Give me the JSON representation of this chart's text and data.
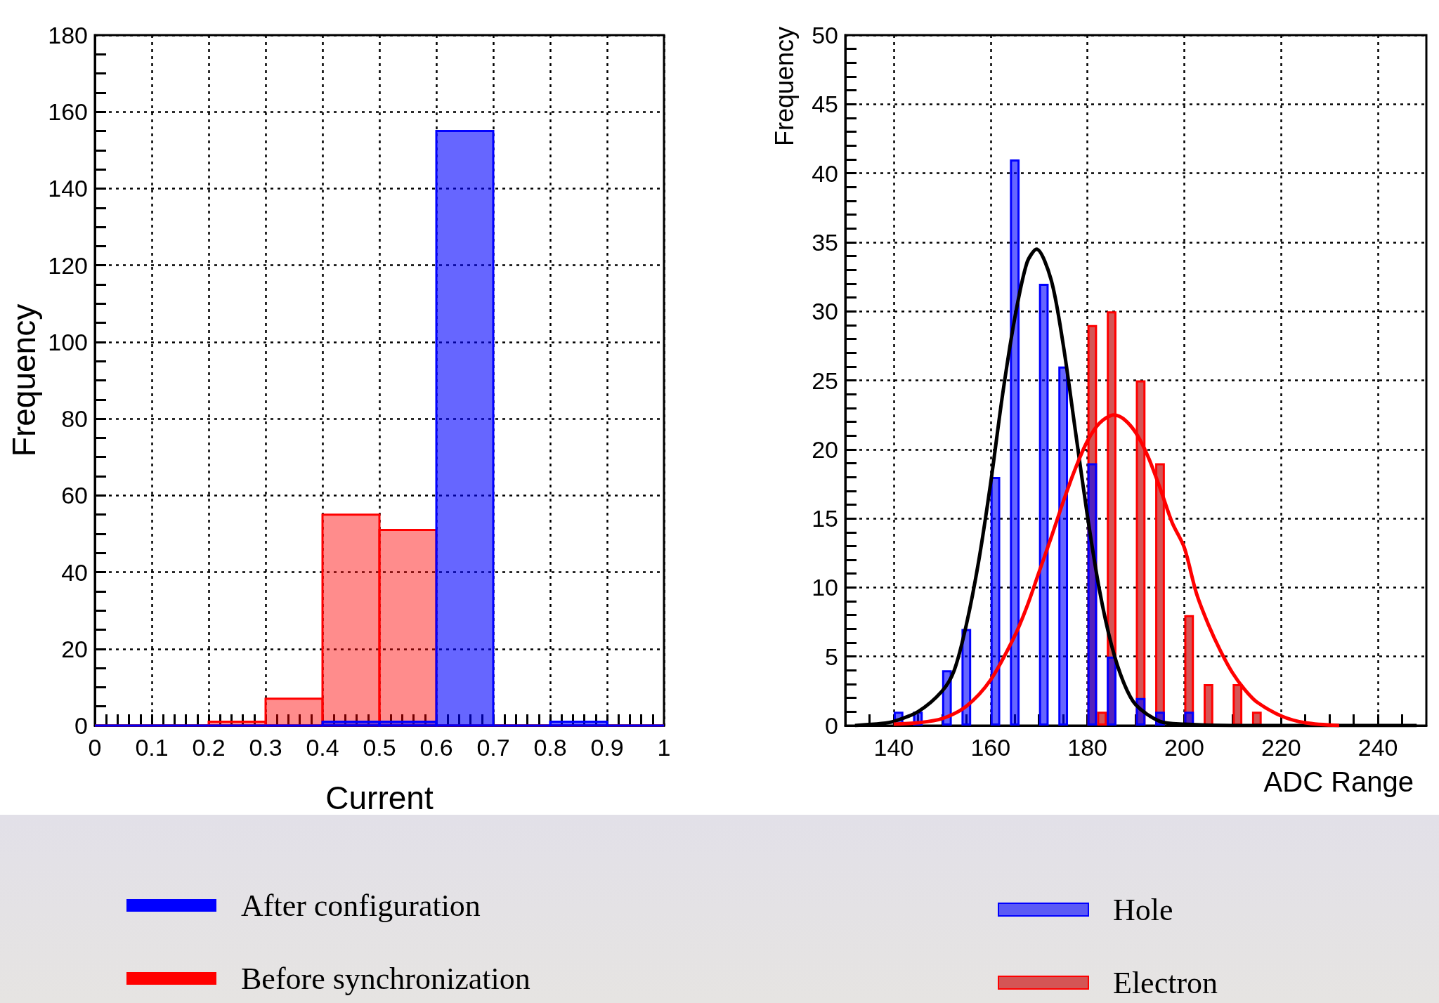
{
  "chart_data": [
    {
      "type": "histogram",
      "xlabel": "Current",
      "ylabel": "Frequency",
      "bins": [
        0,
        0.1,
        0.2,
        0.3,
        0.4,
        0.5,
        0.6,
        0.7,
        0.8,
        0.9,
        1
      ],
      "series": [
        {
          "name": "After configuration",
          "color": "#0000ff",
          "values": [
            0,
            0,
            0,
            0,
            1,
            1,
            155,
            0,
            1,
            0
          ]
        },
        {
          "name": "Before synchronization",
          "color": "#ff0000",
          "values": [
            0,
            0,
            1,
            7,
            55,
            51,
            0,
            0,
            0,
            0
          ]
        }
      ],
      "xlim": [
        0,
        1
      ],
      "xticks": [
        0,
        {
          "value": 0.02,
          "label": null
        },
        {
          "value": 0.04,
          "label": null
        },
        {
          "value": 0.06,
          "label": null
        },
        {
          "value": 0.08,
          "label": null
        },
        0.1,
        {
          "value": 0.12,
          "label": null
        },
        {
          "value": 0.14,
          "label": null
        },
        {
          "value": 0.16,
          "label": null
        },
        {
          "value": 0.18,
          "label": null
        },
        0.2,
        {
          "value": 0.22,
          "label": null
        },
        {
          "value": 0.24,
          "label": null
        },
        {
          "value": 0.26,
          "label": null
        },
        {
          "value": 0.28,
          "label": null
        },
        0.3,
        {
          "value": 0.32,
          "label": null
        },
        {
          "value": 0.34,
          "label": null
        },
        {
          "value": 0.36,
          "label": null
        },
        {
          "value": 0.38,
          "label": null
        },
        0.4,
        {
          "value": 0.42,
          "label": null
        },
        {
          "value": 0.44,
          "label": null
        },
        {
          "value": 0.46,
          "label": null
        },
        {
          "value": 0.48,
          "label": null
        },
        0.5,
        {
          "value": 0.52,
          "label": null
        },
        {
          "value": 0.54,
          "label": null
        },
        {
          "value": 0.56,
          "label": null
        },
        {
          "value": 0.58,
          "label": null
        },
        0.6,
        {
          "value": 0.62,
          "label": null
        },
        {
          "value": 0.64,
          "label": null
        },
        {
          "value": 0.66,
          "label": null
        },
        {
          "value": 0.68,
          "label": null
        },
        0.7,
        {
          "value": 0.72,
          "label": null
        },
        {
          "value": 0.74,
          "label": null
        },
        {
          "value": 0.76,
          "label": null
        },
        {
          "value": 0.78,
          "label": null
        },
        0.8,
        {
          "value": 0.82,
          "label": null
        },
        {
          "value": 0.84,
          "label": null
        },
        {
          "value": 0.86,
          "label": null
        },
        {
          "value": 0.88,
          "label": null
        },
        0.9,
        {
          "value": 0.92,
          "label": null
        },
        {
          "value": 0.94,
          "label": null
        },
        {
          "value": 0.96,
          "label": null
        },
        {
          "value": 0.98,
          "label": null
        },
        1
      ],
      "ylim": [
        0,
        180
      ],
      "yticks": [
        0,
        {
          "value": 5,
          "label": null
        },
        {
          "value": 10,
          "label": null
        },
        {
          "value": 15,
          "label": null
        },
        20,
        {
          "value": 25,
          "label": null
        },
        {
          "value": 30,
          "label": null
        },
        {
          "value": 35,
          "label": null
        },
        40,
        {
          "value": 45,
          "label": null
        },
        {
          "value": 50,
          "label": null
        },
        {
          "value": 55,
          "label": null
        },
        60,
        {
          "value": 65,
          "label": null
        },
        {
          "value": 70,
          "label": null
        },
        {
          "value": 75,
          "label": null
        },
        80,
        {
          "value": 85,
          "label": null
        },
        {
          "value": 90,
          "label": null
        },
        {
          "value": 95,
          "label": null
        },
        100,
        {
          "value": 105,
          "label": null
        },
        {
          "value": 110,
          "label": null
        },
        {
          "value": 115,
          "label": null
        },
        120,
        {
          "value": 125,
          "label": null
        },
        {
          "value": 130,
          "label": null
        },
        {
          "value": 135,
          "label": null
        },
        140,
        {
          "value": 145,
          "label": null
        },
        {
          "value": 150,
          "label": null
        },
        {
          "value": 155,
          "label": null
        },
        160,
        {
          "value": 165,
          "label": null
        },
        {
          "value": 170,
          "label": null
        },
        {
          "value": 175,
          "label": null
        },
        180
      ],
      "grid": true,
      "legend": "bottom"
    },
    {
      "type": "bar",
      "xlabel": "ADC Range",
      "ylabel": "Frequency",
      "series": [
        {
          "name": "Hole",
          "color": "#0000ff",
          "x": [
            141,
            145,
            151,
            155,
            161,
            165,
            171,
            175,
            181,
            185,
            191,
            195,
            201
          ],
          "values": [
            1,
            1,
            4,
            7,
            18,
            41,
            32,
            26,
            19,
            5,
            2,
            1,
            1
          ]
        },
        {
          "name": "Electron",
          "color": "#ff0000",
          "x": [
            181,
            183,
            185,
            191,
            195,
            201,
            205,
            211,
            215
          ],
          "values": [
            29,
            1,
            30,
            25,
            19,
            8,
            3,
            3,
            1
          ]
        },
        {
          "type": "line",
          "color": "#000000",
          "x": [
            132,
            137.5,
            140,
            145,
            150,
            152.5,
            155,
            157.5,
            160,
            162.5,
            165,
            167.5,
            169.5,
            172.5,
            175,
            177.5,
            180,
            182.5,
            185,
            187.5,
            190,
            195,
            200,
            210,
            248
          ],
          "values": [
            0,
            0.15,
            0.3,
            1,
            2.5,
            4,
            7.3,
            11.8,
            17.5,
            24,
            29.5,
            33.5,
            34.5,
            32.3,
            27.6,
            21.4,
            15.2,
            9.8,
            5.8,
            3.1,
            1.5,
            0.3,
            0.1,
            0,
            0
          ]
        },
        {
          "type": "line",
          "color": "#ff0000",
          "x": [
            140,
            145,
            150,
            155,
            160,
            165,
            167.5,
            170,
            172.5,
            175,
            177.5,
            180,
            182.5,
            185.5,
            187.5,
            190,
            192.5,
            195,
            197.5,
            200,
            202.5,
            205,
            207.5,
            210,
            212.5,
            215,
            220,
            225,
            232
          ],
          "values": [
            0.1,
            0.2,
            0.5,
            1.4,
            3.3,
            6.5,
            8.6,
            11.1,
            13.6,
            16.2,
            18.6,
            20.6,
            21.9,
            22.5,
            22.2,
            21.2,
            19.5,
            17.2,
            14.7,
            12.9,
            9.6,
            7.3,
            5.4,
            3.8,
            2.6,
            1.7,
            0.7,
            0.2,
            0
          ]
        }
      ],
      "xlim": [
        130,
        250
      ],
      "xticks": [
        {
          "value": 135,
          "label": null
        },
        140,
        {
          "value": 145,
          "label": null
        },
        {
          "value": 150,
          "label": null
        },
        {
          "value": 155,
          "label": null
        },
        160,
        {
          "value": 165,
          "label": null
        },
        {
          "value": 170,
          "label": null
        },
        {
          "value": 175,
          "label": null
        },
        180,
        {
          "value": 185,
          "label": null
        },
        {
          "value": 190,
          "label": null
        },
        {
          "value": 195,
          "label": null
        },
        200,
        {
          "value": 205,
          "label": null
        },
        {
          "value": 210,
          "label": null
        },
        {
          "value": 215,
          "label": null
        },
        220,
        {
          "value": 225,
          "label": null
        },
        {
          "value": 230,
          "label": null
        },
        {
          "value": 235,
          "label": null
        },
        240,
        {
          "value": 245,
          "label": null
        }
      ],
      "ylim": [
        0,
        50
      ],
      "yticks": [
        0,
        {
          "value": 1,
          "label": null
        },
        {
          "value": 2,
          "label": null
        },
        {
          "value": 3,
          "label": null
        },
        {
          "value": 4,
          "label": null
        },
        5,
        {
          "value": 6,
          "label": null
        },
        {
          "value": 7,
          "label": null
        },
        {
          "value": 8,
          "label": null
        },
        {
          "value": 9,
          "label": null
        },
        10,
        {
          "value": 11,
          "label": null
        },
        {
          "value": 12,
          "label": null
        },
        {
          "value": 13,
          "label": null
        },
        {
          "value": 14,
          "label": null
        },
        15,
        {
          "value": 16,
          "label": null
        },
        {
          "value": 17,
          "label": null
        },
        {
          "value": 18,
          "label": null
        },
        {
          "value": 19,
          "label": null
        },
        20,
        {
          "value": 21,
          "label": null
        },
        {
          "value": 22,
          "label": null
        },
        {
          "value": 23,
          "label": null
        },
        {
          "value": 24,
          "label": null
        },
        25,
        {
          "value": 26,
          "label": null
        },
        {
          "value": 27,
          "label": null
        },
        {
          "value": 28,
          "label": null
        },
        {
          "value": 29,
          "label": null
        },
        30,
        {
          "value": 31,
          "label": null
        },
        {
          "value": 32,
          "label": null
        },
        {
          "value": 33,
          "label": null
        },
        {
          "value": 34,
          "label": null
        },
        35,
        {
          "value": 36,
          "label": null
        },
        {
          "value": 37,
          "label": null
        },
        {
          "value": 38,
          "label": null
        },
        {
          "value": 39,
          "label": null
        },
        40,
        {
          "value": 41,
          "label": null
        },
        {
          "value": 42,
          "label": null
        },
        {
          "value": 43,
          "label": null
        },
        {
          "value": 44,
          "label": null
        },
        45,
        {
          "value": 46,
          "label": null
        },
        {
          "value": 47,
          "label": null
        },
        {
          "value": 48,
          "label": null
        },
        {
          "value": 49,
          "label": null
        },
        50
      ],
      "grid": true,
      "legend": "bottom"
    }
  ]
}
